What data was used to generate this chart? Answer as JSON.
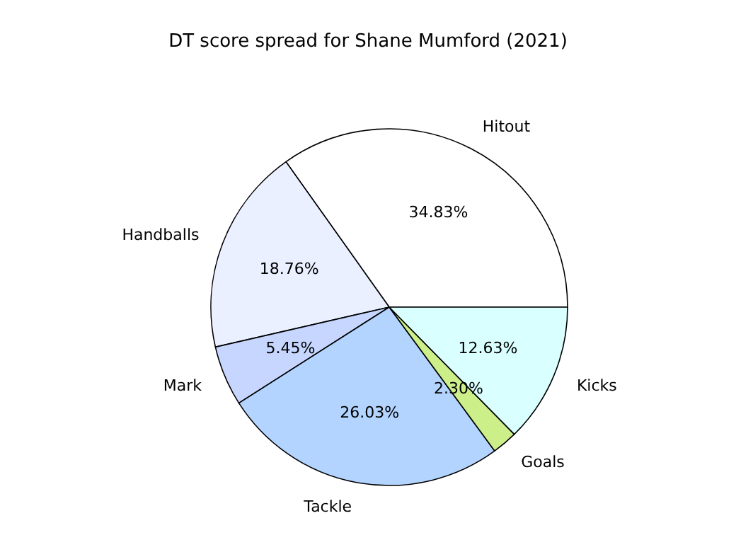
{
  "chart_data": {
    "type": "pie",
    "title": "DT score spread for Shane Mumford (2021)",
    "categories": [
      "Hitout",
      "Handballs",
      "Mark",
      "Tackle",
      "Goals",
      "Kicks"
    ],
    "values": [
      34.83,
      18.76,
      5.45,
      26.03,
      2.3,
      12.63
    ],
    "value_labels": [
      "34.83%",
      "18.76%",
      "5.45%",
      "26.03%",
      "2.30%",
      "12.63%"
    ],
    "colors": [
      "#ffffff",
      "#eaf0ff",
      "#c6d6ff",
      "#b3d4ff",
      "#cdef8a",
      "#daffff"
    ]
  }
}
